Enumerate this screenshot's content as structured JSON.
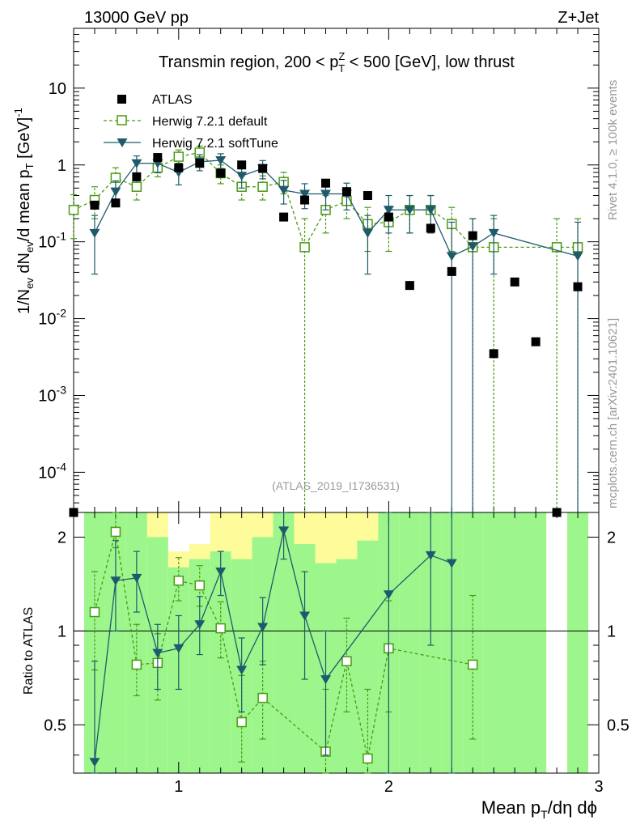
{
  "header": {
    "left": "13000 GeV pp",
    "right": "Z+Jet"
  },
  "side_labels": {
    "rivet": "Rivet 4.1.0, ≥ 100k events",
    "mcplots": "mcplots.cern.ch [arXiv:2401.10621]"
  },
  "chart_data": {
    "type": "scatter",
    "title": "Transmin region, 200 < p_T^Z < 500 [GeV], low thrust",
    "analysis_id": "(ATLAS_2019_I1736531)",
    "xlabel": "Mean p_T/dη dϕ",
    "ylabel": "1/N_ev dN_ev/d mean p_T [GeV]^-1",
    "ratio_ylabel": "Ratio to ATLAS",
    "xlim": [
      0.5,
      3.0
    ],
    "ylim": [
      3e-05,
      60
    ],
    "ratio_ylim": [
      0.35,
      2.4
    ],
    "x_ticks": [
      {
        "v": 1,
        "label": "1"
      },
      {
        "v": 2,
        "label": "2"
      },
      {
        "v": 3,
        "label": "3"
      }
    ],
    "y_ticks": [
      {
        "v": 0.0001,
        "label": "10^-4"
      },
      {
        "v": 0.001,
        "label": "10^-3"
      },
      {
        "v": 0.01,
        "label": "10^-2"
      },
      {
        "v": 0.1,
        "label": "10^-1"
      },
      {
        "v": 1,
        "label": "1"
      },
      {
        "v": 10,
        "label": "10"
      }
    ],
    "ratio_ticks": [
      {
        "v": 0.5,
        "label": "0.5"
      },
      {
        "v": 1,
        "label": "1"
      },
      {
        "v": 2,
        "label": "2"
      }
    ],
    "legend": [
      "ATLAS",
      "Herwig 7.2.1 default",
      "Herwig 7.2.1 softTune"
    ],
    "colors": {
      "data": "#000000",
      "default": "#4a9a14",
      "softtune": "#1f5a6c",
      "band_inner": "#9cf68c",
      "band_outer": "#fdfb9a"
    },
    "atlas": {
      "x": [
        0.5,
        0.6,
        0.7,
        0.8,
        0.9,
        1.0,
        1.1,
        1.2,
        1.3,
        1.4,
        1.5,
        1.6,
        1.7,
        1.8,
        1.9,
        2.0,
        2.1,
        2.2,
        2.3,
        2.4,
        2.5,
        2.6,
        2.7,
        2.8,
        2.9
      ],
      "y": [
        3e-05,
        0.3,
        0.32,
        0.7,
        1.25,
        0.92,
        1.05,
        0.78,
        1.0,
        0.9,
        0.21,
        0.35,
        0.58,
        0.45,
        0.4,
        0.21,
        0.027,
        0.15,
        0.041,
        0.12,
        0.0035,
        0.03,
        0.005,
        3e-05,
        0.026
      ]
    },
    "series": [
      {
        "name": "Herwig 7.2.1 default",
        "x": [
          0.5,
          0.6,
          0.7,
          0.8,
          0.9,
          1.0,
          1.1,
          1.2,
          1.3,
          1.4,
          1.5,
          1.6,
          1.7,
          1.8,
          1.9,
          2.0,
          2.1,
          2.2,
          2.3,
          2.4,
          2.5,
          2.8,
          2.9
        ],
        "y": [
          0.26,
          0.35,
          0.68,
          0.52,
          0.92,
          1.28,
          1.45,
          0.78,
          0.52,
          0.52,
          0.6,
          0.085,
          0.26,
          0.34,
          0.17,
          0.18,
          0.26,
          0.26,
          0.17,
          0.085,
          0.085,
          0.085,
          0.085
        ],
        "lo": [
          0.11,
          0.2,
          0.47,
          0.35,
          0.7,
          1.02,
          1.16,
          0.57,
          0.35,
          0.35,
          0.42,
          3e-05,
          0.13,
          0.2,
          0.075,
          0.075,
          0.13,
          0.13,
          0.075,
          3e-05,
          3e-05,
          3e-05,
          3e-05
        ],
        "hi": [
          0.41,
          0.52,
          0.92,
          0.72,
          1.17,
          1.57,
          1.76,
          1.0,
          0.72,
          0.72,
          0.8,
          0.2,
          0.4,
          0.5,
          0.28,
          0.29,
          0.4,
          0.4,
          0.28,
          0.2,
          0.2,
          0.2,
          0.2
        ],
        "ratio": [
          null,
          1.15,
          2.08,
          0.78,
          0.79,
          1.45,
          1.4,
          1.02,
          0.51,
          0.61,
          null,
          null,
          0.41,
          0.8,
          0.39,
          0.88,
          null,
          null,
          null,
          0.78,
          null,
          null,
          null
        ],
        "ratio_lo": [
          null,
          0.75,
          1.85,
          0.62,
          0.6,
          1.25,
          1.2,
          0.82,
          0.38,
          0.45,
          null,
          null,
          0.3,
          0.55,
          0.3,
          0.55,
          null,
          null,
          null,
          0.45,
          null,
          null,
          null
        ],
        "ratio_hi": [
          null,
          1.55,
          2.4,
          1.05,
          0.98,
          1.72,
          1.62,
          1.24,
          0.72,
          0.8,
          null,
          null,
          0.65,
          1.1,
          0.65,
          1.25,
          null,
          null,
          null,
          1.3,
          null,
          null,
          null
        ]
      },
      {
        "name": "Herwig 7.2.1 softTune",
        "x": [
          0.6,
          0.7,
          0.8,
          0.9,
          1.0,
          1.1,
          1.2,
          1.3,
          1.4,
          1.5,
          1.6,
          1.7,
          1.8,
          1.9,
          2.0,
          2.1,
          2.2,
          2.3,
          2.4,
          2.5,
          2.9
        ],
        "y": [
          0.13,
          0.45,
          1.05,
          1.05,
          0.8,
          1.1,
          1.15,
          0.72,
          0.9,
          0.47,
          0.42,
          0.42,
          0.42,
          0.13,
          0.26,
          0.26,
          0.26,
          0.065,
          0.087,
          0.13,
          0.065
        ],
        "lo": [
          0.038,
          0.3,
          0.79,
          0.79,
          0.55,
          0.84,
          0.9,
          0.5,
          0.66,
          0.31,
          0.27,
          0.26,
          0.26,
          0.038,
          0.13,
          0.13,
          0.13,
          3e-05,
          3e-05,
          0.038,
          3e-05
        ],
        "hi": [
          0.22,
          0.62,
          1.31,
          1.31,
          1.05,
          1.36,
          1.4,
          0.94,
          1.14,
          0.63,
          0.57,
          0.58,
          0.58,
          0.22,
          0.4,
          0.4,
          0.4,
          0.18,
          0.2,
          0.22,
          0.18
        ],
        "ratio": [
          0.38,
          1.45,
          1.48,
          0.85,
          0.88,
          1.05,
          1.55,
          0.75,
          1.03,
          2.1,
          1.12,
          0.7,
          null,
          null,
          1.31,
          null,
          1.75,
          1.65,
          null,
          null,
          null
        ],
        "ratio_lo": [
          0.3,
          1.0,
          1.15,
          0.65,
          0.65,
          0.84,
          1.3,
          0.55,
          0.78,
          1.7,
          0.7,
          0.4,
          null,
          null,
          0.35,
          null,
          0.9,
          0.35,
          null,
          null,
          null
        ],
        "ratio_hi": [
          0.8,
          1.95,
          1.8,
          1.05,
          1.12,
          1.29,
          1.8,
          0.95,
          1.28,
          2.4,
          1.55,
          1.0,
          null,
          null,
          2.4,
          null,
          2.4,
          2.4,
          null,
          null,
          null
        ]
      }
    ],
    "ratio_bands": [
      {
        "x0": 0.55,
        "x1": 0.65,
        "outer": [
          0.35,
          2.4
        ],
        "inner": [
          0.35,
          2.4
        ]
      },
      {
        "x0": 0.65,
        "x1": 0.75,
        "outer": [
          0.35,
          2.4
        ],
        "inner": [
          0.35,
          2.4
        ]
      },
      {
        "x0": 0.75,
        "x1": 0.85,
        "outer": [
          0.35,
          2.4
        ],
        "inner": [
          0.35,
          2.4
        ]
      },
      {
        "x0": 0.85,
        "x1": 0.95,
        "outer": [
          0.35,
          2.4
        ],
        "inner": [
          0.35,
          2.0
        ]
      },
      {
        "x0": 0.95,
        "x1": 1.05,
        "outer": [
          0.35,
          1.8
        ],
        "inner": [
          0.35,
          1.6
        ]
      },
      {
        "x0": 1.05,
        "x1": 1.15,
        "outer": [
          0.35,
          1.9
        ],
        "inner": [
          0.35,
          1.7
        ]
      },
      {
        "x0": 1.15,
        "x1": 1.25,
        "outer": [
          0.35,
          2.4
        ],
        "inner": [
          0.35,
          1.8
        ]
      },
      {
        "x0": 1.25,
        "x1": 1.35,
        "outer": [
          0.35,
          2.4
        ],
        "inner": [
          0.35,
          1.7
        ]
      },
      {
        "x0": 1.35,
        "x1": 1.45,
        "outer": [
          0.35,
          2.4
        ],
        "inner": [
          0.35,
          2.0
        ]
      },
      {
        "x0": 1.45,
        "x1": 1.55,
        "outer": [
          0.35,
          2.4
        ],
        "inner": [
          0.35,
          2.4
        ]
      },
      {
        "x0": 1.55,
        "x1": 1.65,
        "outer": [
          0.35,
          2.4
        ],
        "inner": [
          0.35,
          1.9
        ]
      },
      {
        "x0": 1.65,
        "x1": 1.75,
        "outer": [
          0.35,
          2.4
        ],
        "inner": [
          0.35,
          1.65
        ]
      },
      {
        "x0": 1.75,
        "x1": 1.85,
        "outer": [
          0.35,
          2.4
        ],
        "inner": [
          0.35,
          1.7
        ]
      },
      {
        "x0": 1.85,
        "x1": 1.95,
        "outer": [
          0.35,
          2.4
        ],
        "inner": [
          0.35,
          1.95
        ]
      },
      {
        "x0": 1.95,
        "x1": 2.05,
        "outer": [
          0.35,
          2.4
        ],
        "inner": [
          0.35,
          2.4
        ]
      },
      {
        "x0": 2.05,
        "x1": 2.15,
        "outer": [
          0.35,
          2.4
        ],
        "inner": [
          0.35,
          2.4
        ]
      },
      {
        "x0": 2.15,
        "x1": 2.25,
        "outer": [
          0.35,
          2.4
        ],
        "inner": [
          0.35,
          2.4
        ]
      },
      {
        "x0": 2.25,
        "x1": 2.35,
        "outer": [
          0.35,
          2.4
        ],
        "inner": [
          0.35,
          2.4
        ]
      },
      {
        "x0": 2.35,
        "x1": 2.45,
        "outer": [
          0.35,
          2.3
        ],
        "inner": [
          0.35,
          2.4
        ]
      },
      {
        "x0": 2.45,
        "x1": 2.75,
        "outer": [
          0.35,
          2.4
        ],
        "inner": [
          0.35,
          2.4
        ]
      },
      {
        "x0": 2.85,
        "x1": 2.95,
        "outer": [
          0.35,
          2.4
        ],
        "inner": [
          0.35,
          2.4
        ]
      }
    ]
  }
}
